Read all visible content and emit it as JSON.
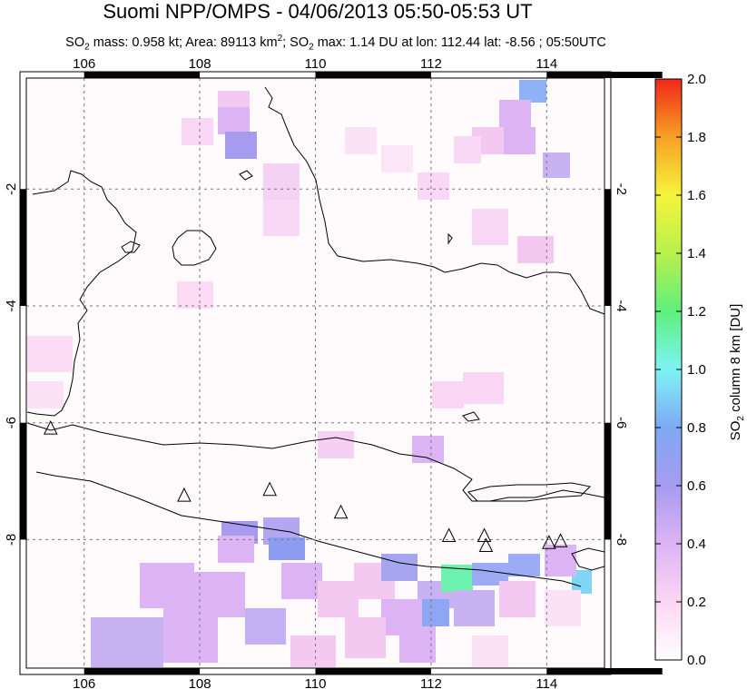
{
  "header": {
    "title": "Suomi NPP/OMPS - 04/06/2013 05:50-05:53 UT",
    "subtitle": {
      "so2_prefix": "SO",
      "mass_label": " mass: 0.958 kt; Area: 89113 km",
      "area_tail": "; SO",
      "max_label": " max: 1.14 DU at lon: 112.44 lat: -8.56 ; 05:50UTC",
      "sub2": "2",
      "sup2": "2"
    }
  },
  "map": {
    "lon_ticks": [
      "106",
      "108",
      "110",
      "112",
      "114"
    ],
    "lat_ticks": [
      "-2",
      "-4",
      "-6",
      "-8"
    ],
    "lon_values": [
      106,
      108,
      110,
      112,
      114
    ],
    "lat_values": [
      -2,
      -4,
      -6,
      -8
    ],
    "extent": {
      "lon_min": 105,
      "lon_max": 115,
      "lat_min": -10.2,
      "lat_max": -0.1
    }
  },
  "colorbar": {
    "ticks": [
      "0.0",
      "0.2",
      "0.4",
      "0.6",
      "0.8",
      "1.0",
      "1.2",
      "1.4",
      "1.6",
      "1.8",
      "2.0"
    ],
    "label_prefix": "SO",
    "label_sub": "2",
    "label_suffix": " column 8 km [DU]",
    "colors": [
      "#ffffff",
      "#fbd6f4",
      "#dcb4f4",
      "#a79bf0",
      "#7fa9f4",
      "#7ef3f4",
      "#5ef07c",
      "#b8f04c",
      "#f6f43c",
      "#f7a026",
      "#f02818"
    ]
  },
  "volcanoes": [
    {
      "lon": 105.42,
      "lat": -6.1
    },
    {
      "lon": 107.73,
      "lat": -7.25
    },
    {
      "lon": 109.21,
      "lat": -7.15
    },
    {
      "lon": 110.44,
      "lat": -7.54
    },
    {
      "lon": 112.31,
      "lat": -7.94
    },
    {
      "lon": 112.92,
      "lat": -7.94
    },
    {
      "lon": 112.95,
      "lat": -8.11
    },
    {
      "lon": 114.04,
      "lat": -8.06
    },
    {
      "lon": 114.24,
      "lat": -8.03
    }
  ]
}
